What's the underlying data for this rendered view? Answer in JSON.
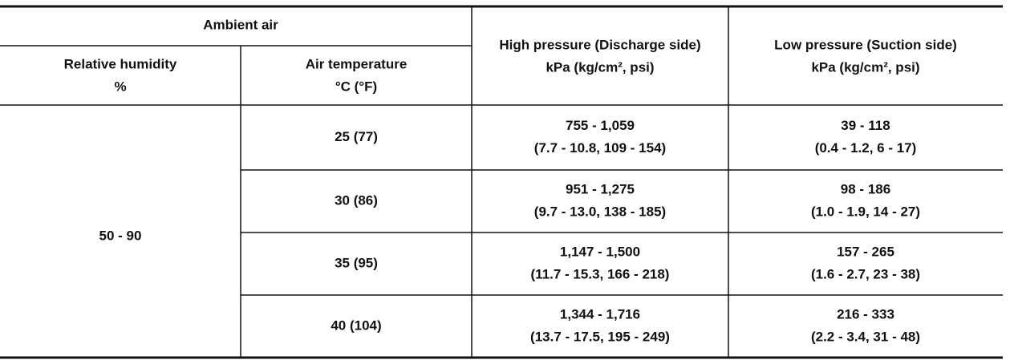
{
  "table": {
    "header": {
      "ambient_air": "Ambient air",
      "relative_humidity": [
        "Relative humidity",
        "%"
      ],
      "air_temperature": [
        "Air temperature",
        "°C (°F)"
      ],
      "high_pressure": [
        "High pressure (Discharge side)",
        "kPa (kg/cm², psi)"
      ],
      "low_pressure": [
        "Low pressure (Suction side)",
        "kPa (kg/cm², psi)"
      ]
    },
    "relative_humidity": "50 - 90",
    "rows": [
      {
        "air_temperature": "25 (77)",
        "high_pressure": [
          "755 - 1,059",
          "(7.7 - 10.8, 109 - 154)"
        ],
        "low_pressure": [
          "39 - 118",
          "(0.4 - 1.2, 6 - 17)"
        ]
      },
      {
        "air_temperature": "30 (86)",
        "high_pressure": [
          "951 - 1,275",
          "(9.7 - 13.0, 138 - 185)"
        ],
        "low_pressure": [
          "98 - 186",
          "(1.0 - 1.9, 14 - 27)"
        ]
      },
      {
        "air_temperature": "35 (95)",
        "high_pressure": [
          "1,147 - 1,500",
          "(11.7 - 15.3, 166 - 218)"
        ],
        "low_pressure": [
          "157 - 265",
          "(1.6 - 2.7, 23 - 38)"
        ]
      },
      {
        "air_temperature": "40 (104)",
        "high_pressure": [
          "1,344 - 1,716",
          "(13.7 - 17.5, 195 - 249)"
        ],
        "low_pressure": [
          "216 - 333",
          "(2.2 - 3.4, 31 - 48)"
        ]
      }
    ]
  }
}
